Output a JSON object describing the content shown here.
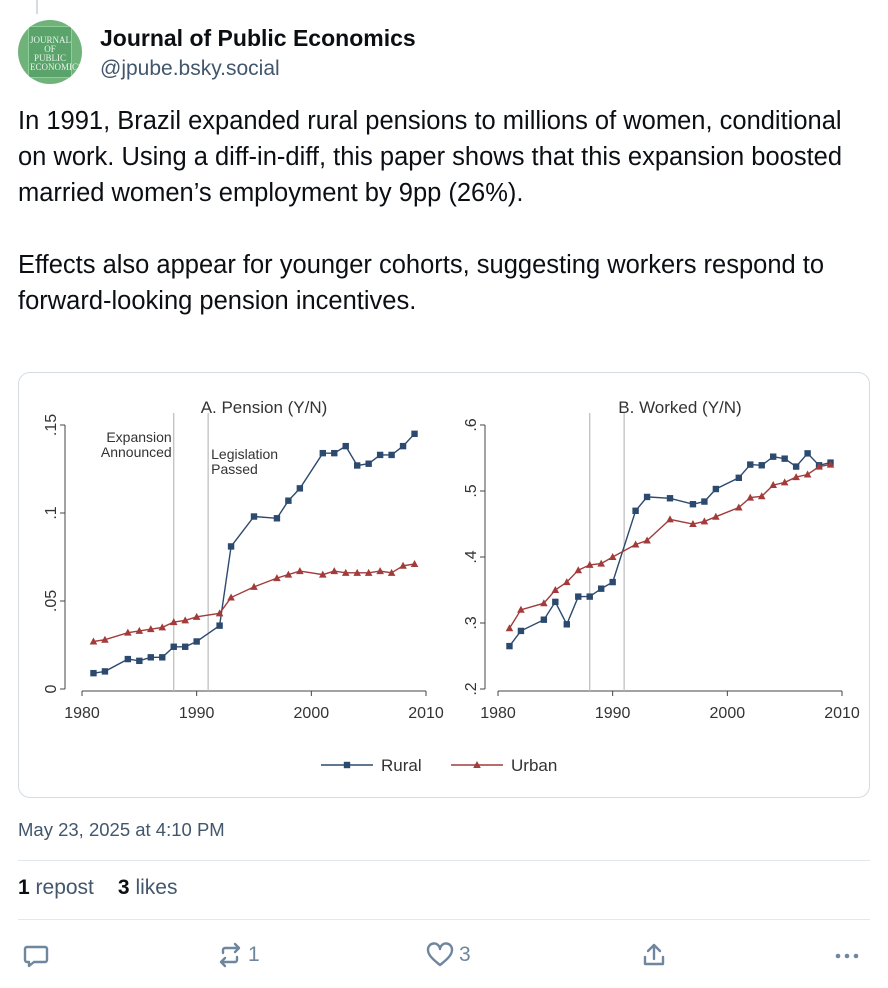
{
  "author": {
    "name": "Journal of Public Economics",
    "handle": "@jpube.bsky.social",
    "avatar_text": "JOURNAL OF PUBLIC ECONOMICS"
  },
  "post": {
    "paragraphs": [
      "In 1991, Brazil expanded rural pensions to millions of women, conditional on work. Using a diff-in-diff, this paper shows that this expansion boosted married women’s employment by 9pp (26%).",
      "Effects also appear for younger cohorts, suggesting workers respond to forward-looking pension incentives."
    ],
    "timestamp": "May 23, 2025 at 4:10 PM"
  },
  "stats": {
    "reposts_count": "1",
    "reposts_label": "repost",
    "likes_count": "3",
    "likes_label": "likes"
  },
  "actions": {
    "reply_count": "",
    "repost_count": "1",
    "like_count": "3"
  },
  "colors": {
    "rural": "#2c4a6e",
    "urban": "#a23b3b",
    "link": "#1083fe",
    "muted": "#42576c"
  },
  "chart_data": [
    {
      "type": "line",
      "title": "A. Pension (Y/N)",
      "xlabel": "",
      "ylabel": "",
      "xlim": [
        1980,
        2010
      ],
      "ylim": [
        0,
        0.15
      ],
      "xticks": [
        1980,
        1990,
        2000,
        2010
      ],
      "yticks": [
        0,
        0.05,
        0.1,
        0.15
      ],
      "ytick_labels": [
        "0",
        ".05",
        ".1",
        ".15"
      ],
      "vlines": [
        {
          "x": 1988,
          "label_lines": [
            "Expansion",
            "Announced"
          ],
          "label_side": "left"
        },
        {
          "x": 1991,
          "label_lines": [
            "Legislation",
            "Passed"
          ],
          "label_side": "right"
        }
      ],
      "series": [
        {
          "name": "Rural",
          "marker": "square",
          "x": [
            1981,
            1982,
            1984,
            1985,
            1986,
            1987,
            1988,
            1989,
            1990,
            1992,
            1993,
            1995,
            1997,
            1998,
            1999,
            2001,
            2002,
            2003,
            2004,
            2005,
            2006,
            2007,
            2008,
            2009
          ],
          "y": [
            0.009,
            0.01,
            0.017,
            0.016,
            0.018,
            0.018,
            0.024,
            0.024,
            0.027,
            0.036,
            0.081,
            0.098,
            0.097,
            0.107,
            0.114,
            0.134,
            0.134,
            0.138,
            0.127,
            0.128,
            0.133,
            0.133,
            0.138,
            0.145
          ]
        },
        {
          "name": "Urban",
          "marker": "triangle",
          "x": [
            1981,
            1982,
            1984,
            1985,
            1986,
            1987,
            1988,
            1989,
            1990,
            1992,
            1993,
            1995,
            1997,
            1998,
            1999,
            2001,
            2002,
            2003,
            2004,
            2005,
            2006,
            2007,
            2008,
            2009
          ],
          "y": [
            0.027,
            0.028,
            0.032,
            0.033,
            0.034,
            0.035,
            0.038,
            0.039,
            0.041,
            0.043,
            0.052,
            0.058,
            0.063,
            0.065,
            0.067,
            0.065,
            0.067,
            0.066,
            0.066,
            0.066,
            0.067,
            0.066,
            0.07,
            0.071
          ]
        }
      ]
    },
    {
      "type": "line",
      "title": "B. Worked (Y/N)",
      "xlabel": "",
      "ylabel": "",
      "xlim": [
        1980,
        2010
      ],
      "ylim": [
        0.2,
        0.6
      ],
      "xticks": [
        1980,
        1990,
        2000,
        2010
      ],
      "yticks": [
        0.2,
        0.3,
        0.4,
        0.5,
        0.6
      ],
      "ytick_labels": [
        ".2",
        ".3",
        ".4",
        ".5",
        ".6"
      ],
      "vlines": [
        {
          "x": 1988
        },
        {
          "x": 1991
        }
      ],
      "series": [
        {
          "name": "Rural",
          "marker": "square",
          "x": [
            1981,
            1982,
            1984,
            1985,
            1986,
            1987,
            1988,
            1989,
            1990,
            1992,
            1993,
            1995,
            1997,
            1998,
            1999,
            2001,
            2002,
            2003,
            2004,
            2005,
            2006,
            2007,
            2008,
            2009
          ],
          "y": [
            0.265,
            0.288,
            0.305,
            0.332,
            0.298,
            0.34,
            0.34,
            0.352,
            0.362,
            0.47,
            0.491,
            0.489,
            0.48,
            0.484,
            0.503,
            0.52,
            0.54,
            0.539,
            0.552,
            0.549,
            0.537,
            0.557,
            0.539,
            0.543
          ]
        },
        {
          "name": "Urban",
          "marker": "triangle",
          "x": [
            1981,
            1982,
            1984,
            1985,
            1986,
            1987,
            1988,
            1989,
            1990,
            1992,
            1993,
            1995,
            1997,
            1998,
            1999,
            2001,
            2002,
            2003,
            2004,
            2005,
            2006,
            2007,
            2008,
            2009
          ],
          "y": [
            0.292,
            0.32,
            0.33,
            0.35,
            0.362,
            0.38,
            0.388,
            0.39,
            0.4,
            0.419,
            0.425,
            0.457,
            0.45,
            0.454,
            0.461,
            0.475,
            0.49,
            0.492,
            0.509,
            0.513,
            0.521,
            0.525,
            0.537,
            0.54
          ]
        }
      ]
    }
  ],
  "legend": [
    "Rural",
    "Urban"
  ]
}
